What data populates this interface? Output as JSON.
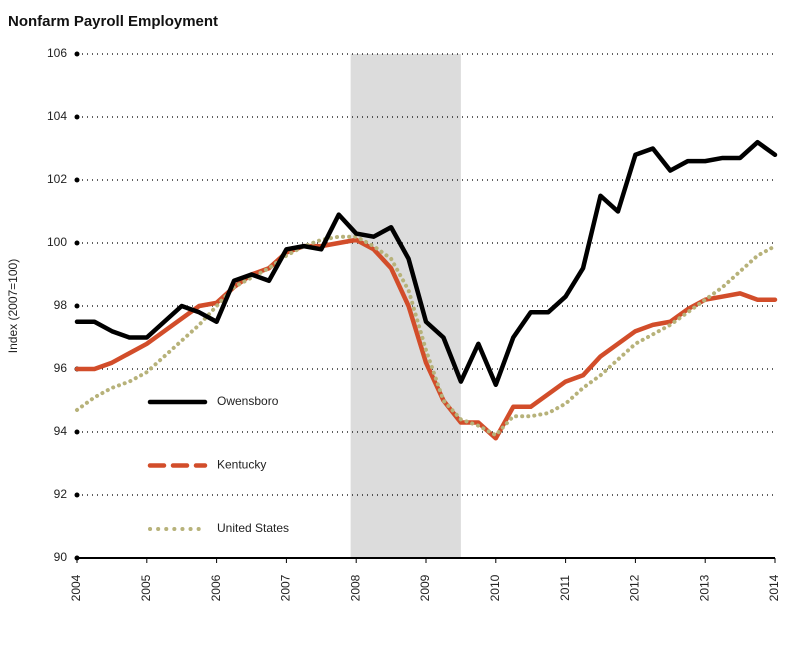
{
  "chart_data": {
    "type": "line",
    "title": "Nonfarm Payroll Employment",
    "y_label": "Index (2007=100)",
    "x": [
      2004,
      2004.25,
      2004.5,
      2004.75,
      2005,
      2005.25,
      2005.5,
      2005.75,
      2006,
      2006.25,
      2006.5,
      2006.75,
      2007,
      2007.25,
      2007.5,
      2007.75,
      2008,
      2008.25,
      2008.5,
      2008.75,
      2009,
      2009.25,
      2009.5,
      2009.75,
      2010,
      2010.25,
      2010.5,
      2010.75,
      2011,
      2011.25,
      2011.5,
      2011.75,
      2012,
      2012.25,
      2012.5,
      2012.75,
      2013,
      2013.25,
      2013.5,
      2013.75,
      2014
    ],
    "series": [
      {
        "name": "Owensboro",
        "color": "#000000",
        "values": [
          97.5,
          97.5,
          97.2,
          97.0,
          97.0,
          97.5,
          98.0,
          97.8,
          97.5,
          98.8,
          99.0,
          98.8,
          99.8,
          99.9,
          99.8,
          100.9,
          100.3,
          100.2,
          100.5,
          99.5,
          97.5,
          97.0,
          95.6,
          96.8,
          95.5,
          97.0,
          97.8,
          97.8,
          98.3,
          99.2,
          101.5,
          101.0,
          102.8,
          103.0,
          102.3,
          102.6,
          102.6,
          102.7,
          102.7,
          103.2,
          102.8
        ]
      },
      {
        "name": "Kentucky",
        "color": "#d24d2a",
        "values": [
          96.0,
          96.0,
          96.2,
          96.5,
          96.8,
          97.2,
          97.6,
          98.0,
          98.1,
          98.6,
          99.0,
          99.2,
          99.7,
          99.9,
          99.9,
          100.0,
          100.1,
          99.8,
          99.2,
          98.0,
          96.2,
          95.0,
          94.3,
          94.3,
          93.8,
          94.8,
          94.8,
          95.2,
          95.6,
          95.8,
          96.4,
          96.8,
          97.2,
          97.4,
          97.5,
          97.9,
          98.2,
          98.3,
          98.4,
          98.2,
          98.2
        ]
      },
      {
        "name": "United States",
        "color": "#b7b27a",
        "values": [
          94.7,
          95.1,
          95.4,
          95.6,
          95.9,
          96.4,
          96.9,
          97.4,
          98.0,
          98.6,
          98.9,
          99.2,
          99.6,
          99.9,
          100.1,
          100.2,
          100.2,
          99.9,
          99.5,
          98.5,
          96.6,
          95.0,
          94.4,
          94.2,
          93.9,
          94.5,
          94.5,
          94.6,
          94.9,
          95.4,
          95.8,
          96.3,
          96.8,
          97.1,
          97.4,
          97.8,
          98.2,
          98.6,
          99.1,
          99.6,
          99.9
        ]
      }
    ],
    "shaded_range": [
      2007.92,
      2009.5
    ],
    "xlim": [
      2004,
      2014
    ],
    "xticks": [
      2004,
      2005,
      2006,
      2007,
      2008,
      2009,
      2010,
      2011,
      2012,
      2013,
      2014
    ],
    "ylim": [
      90,
      106
    ],
    "yticks": [
      90,
      92,
      94,
      96,
      98,
      100,
      102,
      104,
      106
    ],
    "grid": true
  }
}
